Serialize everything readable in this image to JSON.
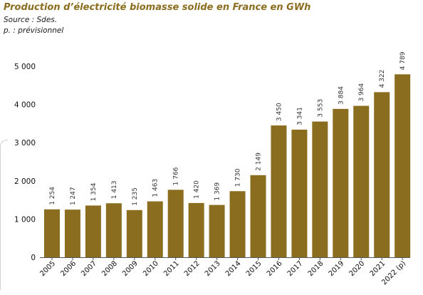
{
  "title": "Production d’électricité biomasse solide en France en GWh",
  "source": "Source : Sdes.",
  "note": "p. : prévisionnel",
  "chart_data": {
    "type": "bar",
    "categories": [
      "2005",
      "2006",
      "2007",
      "2008",
      "2009",
      "2010",
      "2011",
      "2012",
      "2013",
      "2014",
      "2015",
      "2016",
      "2017",
      "2018",
      "2019",
      "2020",
      "2021",
      "2022 (p)"
    ],
    "values": [
      1254,
      1247,
      1354,
      1413,
      1235,
      1463,
      1766,
      1420,
      1369,
      1730,
      2149,
      3450,
      3341,
      3553,
      3884,
      3964,
      4322,
      4789
    ],
    "value_labels": [
      "1 254",
      "1 247",
      "1 354",
      "1 413",
      "1 235",
      "1 463",
      "1 766",
      "1 420",
      "1 369",
      "1 730",
      "2 149",
      "3 450",
      "3 341",
      "3 553",
      "3 884",
      "3 964",
      "4 322",
      "4 789"
    ],
    "yticks": [
      "0",
      "1 000",
      "2 000",
      "3 000",
      "4 000",
      "5 000"
    ],
    "ylim": [
      0,
      5000
    ],
    "bar_color": "#8a6d1f",
    "grid": false,
    "legend": "none"
  }
}
